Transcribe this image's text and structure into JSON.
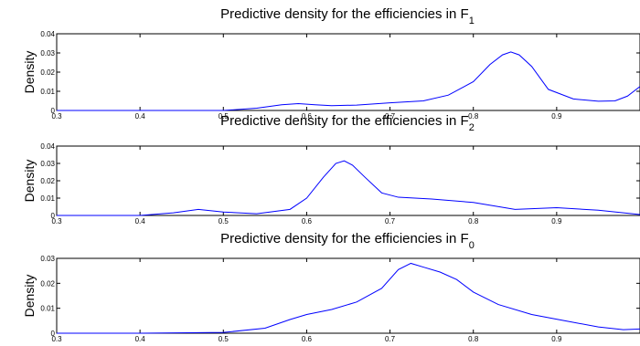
{
  "chart_data": [
    {
      "type": "line",
      "title": "Predictive density for the efficiencies in F",
      "title_subscript": "1",
      "xlabel": "",
      "ylabel": "Density",
      "xlim": [
        0.3,
        1.0
      ],
      "ylim": [
        0,
        0.04
      ],
      "xticks": [
        "0.3",
        "0.4",
        "0.5",
        "0.6",
        "0.7",
        "0.8",
        "0.9"
      ],
      "yticks": [
        "0",
        "0.01",
        "0.02",
        "0.03",
        "0.04"
      ],
      "line_color": "#0000ff",
      "series": [
        {
          "x": [
            0.3,
            0.4,
            0.5,
            0.54,
            0.57,
            0.59,
            0.61,
            0.63,
            0.66,
            0.7,
            0.74,
            0.77,
            0.8,
            0.82,
            0.835,
            0.845,
            0.855,
            0.87,
            0.89,
            0.92,
            0.95,
            0.97,
            0.985,
            1.0
          ],
          "y": [
            0,
            0,
            0,
            0.0012,
            0.003,
            0.0036,
            0.003,
            0.0025,
            0.0028,
            0.004,
            0.005,
            0.008,
            0.015,
            0.024,
            0.029,
            0.0305,
            0.029,
            0.023,
            0.011,
            0.006,
            0.0048,
            0.005,
            0.0075,
            0.0125
          ]
        }
      ]
    },
    {
      "type": "line",
      "title": "Predictive density for the efficiencies in F",
      "title_subscript": "2",
      "xlabel": "",
      "ylabel": "Density",
      "xlim": [
        0.3,
        1.0
      ],
      "ylim": [
        0,
        0.04
      ],
      "xticks": [
        "0.3",
        "0.4",
        "0.5",
        "0.6",
        "0.7",
        "0.8",
        "0.9"
      ],
      "yticks": [
        "0",
        "0.01",
        "0.02",
        "0.03",
        "0.04"
      ],
      "line_color": "#0000ff",
      "series": [
        {
          "x": [
            0.3,
            0.4,
            0.44,
            0.47,
            0.5,
            0.54,
            0.58,
            0.6,
            0.62,
            0.635,
            0.645,
            0.655,
            0.67,
            0.69,
            0.71,
            0.75,
            0.8,
            0.85,
            0.9,
            0.95,
            1.0
          ],
          "y": [
            0,
            0,
            0.0015,
            0.0035,
            0.002,
            0.001,
            0.0035,
            0.01,
            0.022,
            0.03,
            0.0315,
            0.029,
            0.022,
            0.013,
            0.0105,
            0.0095,
            0.0075,
            0.0035,
            0.0045,
            0.003,
            0.0005
          ]
        }
      ]
    },
    {
      "type": "line",
      "title": "Predictive density for the efficiencies in F",
      "title_subscript": "0",
      "xlabel": "",
      "ylabel": "Density",
      "xlim": [
        0.3,
        1.0
      ],
      "ylim": [
        0,
        0.03
      ],
      "xticks": [
        "0.3",
        "0.4",
        "0.5",
        "0.6",
        "0.7",
        "0.8",
        "0.9"
      ],
      "yticks": [
        "0",
        "0.01",
        "0.02",
        "0.03"
      ],
      "line_color": "#0000ff",
      "series": [
        {
          "x": [
            0.3,
            0.4,
            0.5,
            0.55,
            0.58,
            0.6,
            0.63,
            0.66,
            0.69,
            0.71,
            0.725,
            0.74,
            0.76,
            0.78,
            0.8,
            0.83,
            0.87,
            0.91,
            0.95,
            0.98,
            1.0
          ],
          "y": [
            0,
            0,
            0.0003,
            0.002,
            0.0055,
            0.0075,
            0.0095,
            0.0125,
            0.018,
            0.0255,
            0.028,
            0.0265,
            0.0245,
            0.0215,
            0.0165,
            0.0115,
            0.0075,
            0.005,
            0.0025,
            0.0014,
            0.0017
          ]
        }
      ]
    }
  ]
}
